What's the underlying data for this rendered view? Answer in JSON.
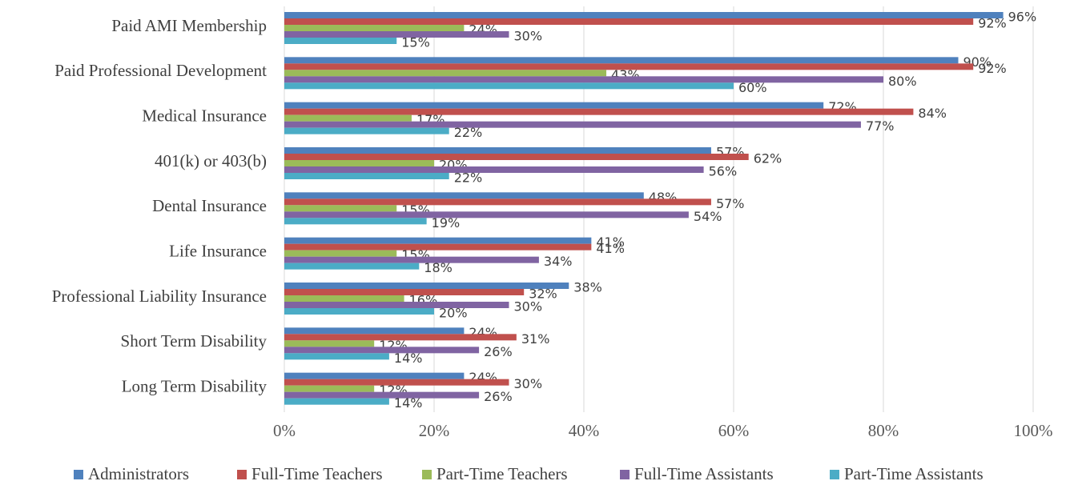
{
  "chart_data": {
    "type": "bar",
    "orientation": "horizontal",
    "categories": [
      "Paid AMI Membership",
      "Paid Professional Development",
      "Medical Insurance",
      "401(k) or 403(b)",
      "Dental Insurance",
      "Life Insurance",
      "Professional Liability Insurance",
      "Short Term Disability",
      "Long Term Disability"
    ],
    "series": [
      {
        "name": "Administrators",
        "color": "#4f81bd",
        "values": [
          96,
          90,
          72,
          57,
          48,
          41,
          38,
          24,
          24
        ],
        "value_labels": [
          "96%",
          "90%",
          "72%",
          "57%",
          "48%",
          "41%",
          "38%",
          "24%",
          "24%"
        ]
      },
      {
        "name": "Full-Time Teachers",
        "color": "#c0504d",
        "values": [
          92,
          92,
          84,
          62,
          57,
          41,
          32,
          31,
          30
        ],
        "value_labels": [
          "92%",
          "92%",
          "84%",
          "62%",
          "57%",
          "41%",
          "32%",
          "31%",
          "30%"
        ]
      },
      {
        "name": "Part-Time Teachers",
        "color": "#9bbb59",
        "values": [
          24,
          43,
          17,
          20,
          15,
          15,
          16,
          12,
          12
        ],
        "value_labels": [
          "24%",
          "43%",
          "17%",
          "20%",
          "15%",
          "15%",
          "16%",
          "12%",
          "12%"
        ]
      },
      {
        "name": "Full-Time Assistants",
        "color": "#8064a2",
        "values": [
          30,
          80,
          77,
          56,
          54,
          34,
          30,
          26,
          26
        ],
        "value_labels": [
          "30%",
          "80%",
          "77%",
          "56%",
          "54%",
          "34%",
          "30%",
          "26%",
          "26%"
        ]
      },
      {
        "name": "Part-Time Assistants",
        "color": "#4bacc6",
        "values": [
          15,
          60,
          22,
          22,
          19,
          18,
          20,
          14,
          14
        ],
        "value_labels": [
          "15%",
          "60%",
          "22%",
          "22%",
          "19%",
          "18%",
          "20%",
          "14%",
          "14%"
        ]
      }
    ],
    "xlim": [
      0,
      100
    ],
    "xticks": [
      {
        "value": 0,
        "label": "0%"
      },
      {
        "value": 20,
        "label": "20%"
      },
      {
        "value": 40,
        "label": "40%"
      },
      {
        "value": 60,
        "label": "60%"
      },
      {
        "value": 80,
        "label": "80%"
      },
      {
        "value": 100,
        "label": "100%"
      }
    ],
    "grid": true,
    "legend": "bottom"
  }
}
